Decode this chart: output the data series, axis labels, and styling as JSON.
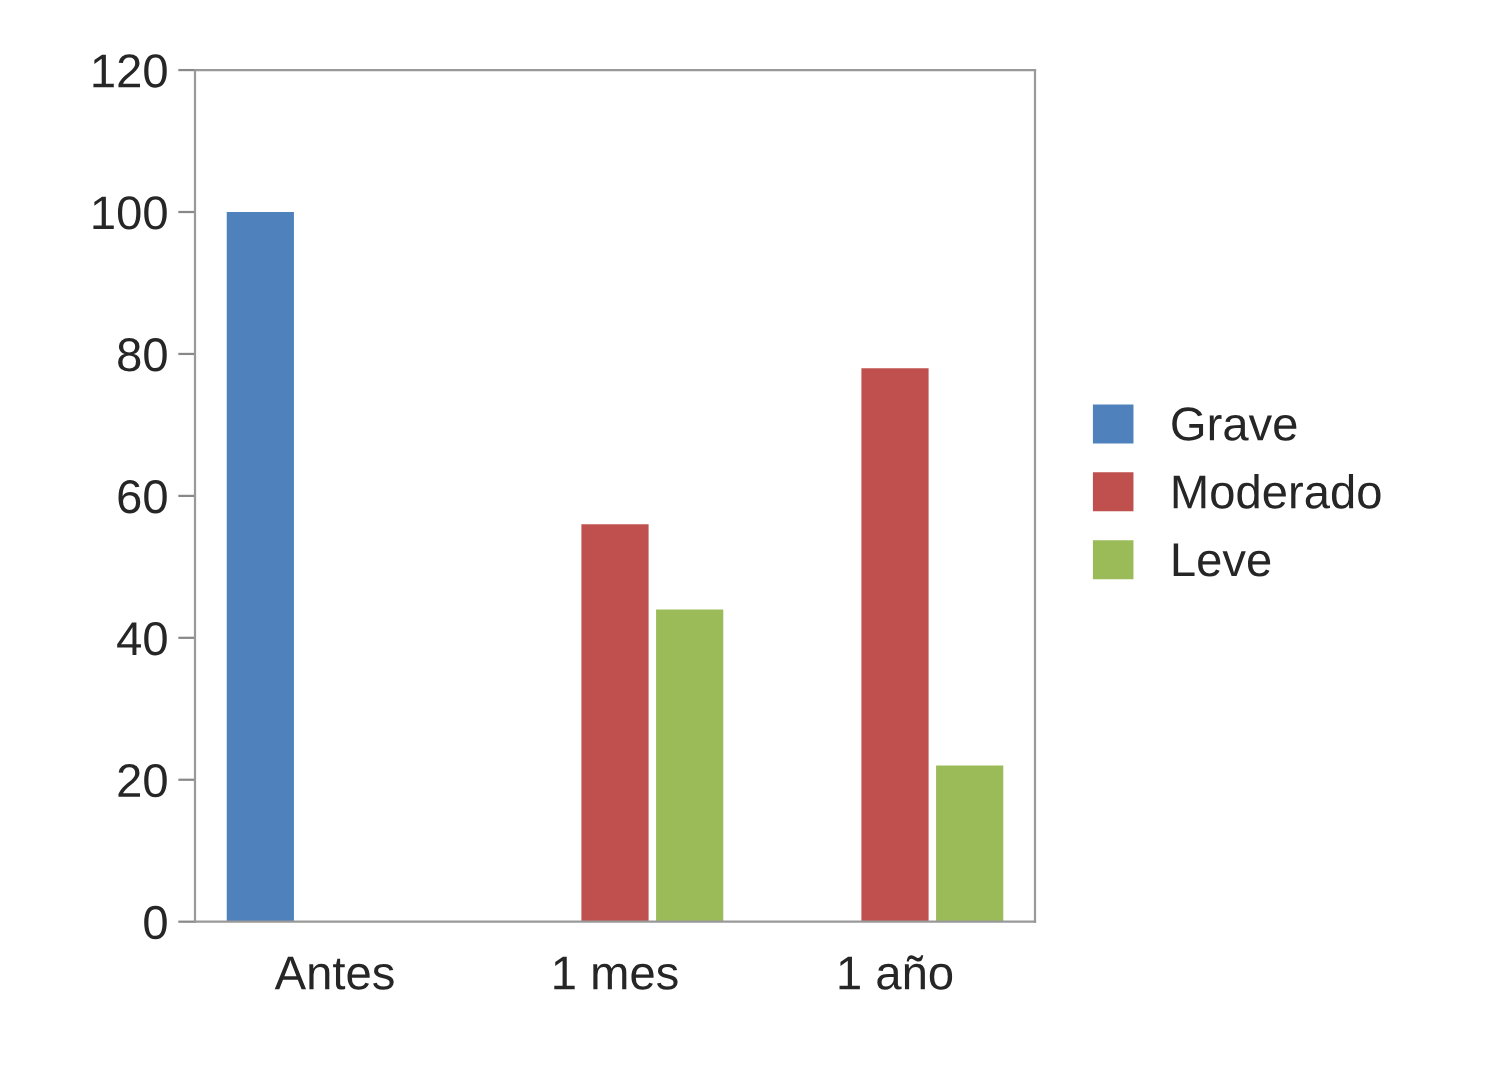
{
  "chart_data": {
    "type": "bar",
    "categories": [
      "Antes",
      "1 mes",
      "1 año"
    ],
    "series": [
      {
        "name": "Grave",
        "color": "#4f81bd",
        "values": [
          100,
          null,
          null
        ]
      },
      {
        "name": "Moderado",
        "color": "#c0504d",
        "values": [
          null,
          56,
          78
        ]
      },
      {
        "name": "Leve",
        "color": "#9bbb59",
        "values": [
          null,
          44,
          22
        ]
      }
    ],
    "ylim": [
      0,
      120
    ],
    "yticks": [
      0,
      20,
      40,
      60,
      80,
      100,
      120
    ],
    "grid": false,
    "legend": "right"
  }
}
